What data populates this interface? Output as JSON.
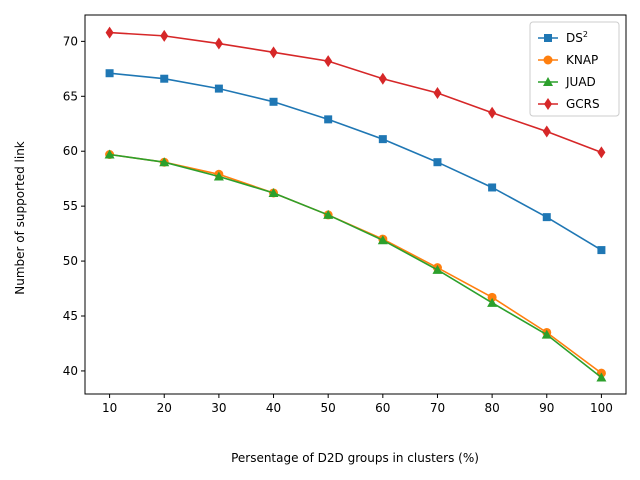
{
  "chart_data": {
    "type": "line",
    "title": "",
    "xlabel": "Persentage of D2D groups in clusters (%)",
    "ylabel": "Number of supported link",
    "x": [
      10,
      20,
      30,
      40,
      50,
      60,
      70,
      80,
      90,
      100
    ],
    "x_ticks": [
      "10",
      "20",
      "30",
      "40",
      "50",
      "60",
      "70",
      "80",
      "90",
      "100"
    ],
    "y_ticks": [
      "40",
      "45",
      "50",
      "55",
      "60",
      "65",
      "70"
    ],
    "xlim": [
      5.5,
      104.5
    ],
    "ylim": [
      37.9,
      72.4
    ],
    "grid": false,
    "legend_position": "top-right",
    "series": [
      {
        "name": "DS",
        "name_sup": "2",
        "color": "#1f77b4",
        "marker": "square",
        "values": [
          67.1,
          66.6,
          65.7,
          64.5,
          62.9,
          61.1,
          59.0,
          56.7,
          54.0,
          51.0
        ]
      },
      {
        "name": "KNAP",
        "name_sup": "",
        "color": "#ff7f0e",
        "marker": "circle",
        "values": [
          59.7,
          59.0,
          57.9,
          56.2,
          54.2,
          52.0,
          49.4,
          46.7,
          43.5,
          39.8
        ]
      },
      {
        "name": "JUAD",
        "name_sup": "",
        "color": "#2ca02c",
        "marker": "triangle",
        "values": [
          59.7,
          59.0,
          57.7,
          56.2,
          54.2,
          51.9,
          49.2,
          46.2,
          43.3,
          39.4
        ]
      },
      {
        "name": "GCRS",
        "name_sup": "",
        "color": "#d62728",
        "marker": "diamond",
        "values": [
          70.8,
          70.5,
          69.8,
          69.0,
          68.2,
          66.6,
          65.3,
          63.5,
          61.8,
          59.9
        ]
      }
    ]
  }
}
